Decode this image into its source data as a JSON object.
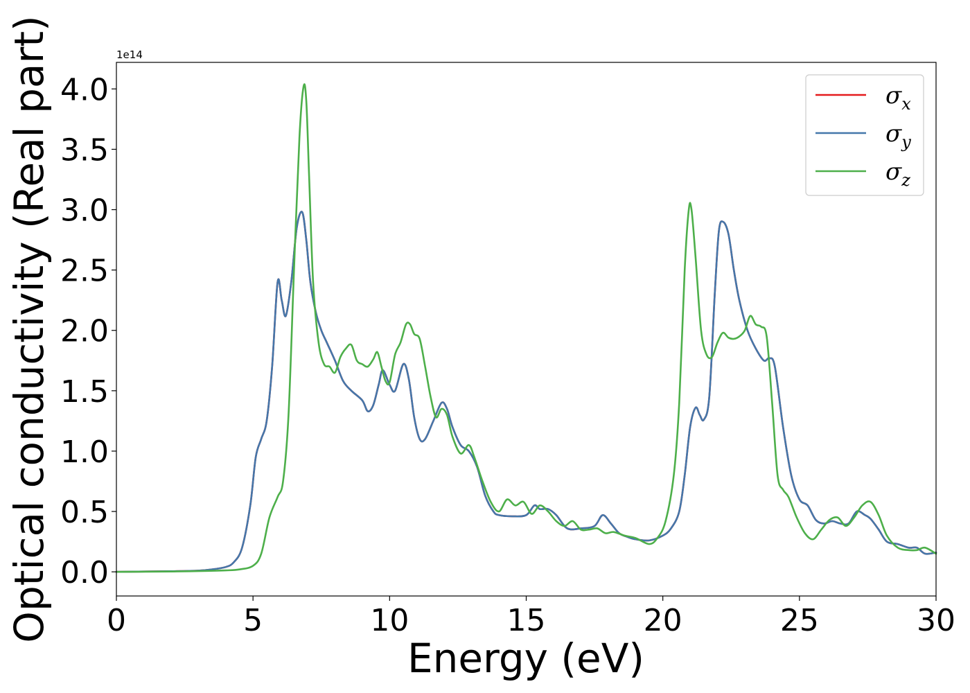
{
  "chart_data": {
    "type": "line",
    "xlabel": "Energy (eV)",
    "ylabel": "Optical conductivity (Real part)",
    "y_offset_label": "1e14",
    "xlim": [
      0,
      30
    ],
    "ylim": [
      -0.2,
      4.22
    ],
    "x_ticks": [
      0,
      5,
      10,
      15,
      20,
      25,
      30
    ],
    "x_tick_labels": [
      "0",
      "5",
      "10",
      "15",
      "20",
      "25",
      "30"
    ],
    "y_ticks": [
      0.0,
      0.5,
      1.0,
      1.5,
      2.0,
      2.5,
      3.0,
      3.5,
      4.0
    ],
    "y_tick_labels": [
      "0.0",
      "0.5",
      "1.0",
      "1.5",
      "2.0",
      "2.5",
      "3.0",
      "3.5",
      "4.0"
    ],
    "grid": false,
    "legend_position": "top-right",
    "series": [
      {
        "name": "σx",
        "legend_main": "σ",
        "legend_sub": "x",
        "color": "#e41a1c",
        "x": [
          0,
          2,
          3,
          3.5,
          4,
          4.3,
          4.6,
          4.9,
          5.1,
          5.3,
          5.5,
          5.7,
          5.9,
          6.05,
          6.2,
          6.4,
          6.6,
          6.8,
          6.95,
          7.1,
          7.3,
          7.5,
          7.7,
          8.0,
          8.3,
          8.6,
          9.0,
          9.2,
          9.4,
          9.6,
          9.75,
          10.0,
          10.2,
          10.5,
          10.7,
          10.9,
          11.1,
          11.3,
          11.6,
          11.9,
          12.1,
          12.3,
          12.6,
          12.9,
          13.2,
          13.5,
          13.8,
          14.0,
          14.5,
          15.0,
          15.3,
          15.5,
          15.8,
          16.1,
          16.5,
          17.0,
          17.5,
          17.8,
          18.1,
          18.4,
          18.7,
          19.0,
          19.5,
          20.0,
          20.3,
          20.6,
          20.8,
          21.0,
          21.2,
          21.35,
          21.5,
          21.7,
          21.9,
          22.05,
          22.2,
          22.4,
          22.6,
          22.8,
          23.1,
          23.4,
          23.7,
          23.9,
          24.1,
          24.4,
          24.7,
          25.0,
          25.3,
          25.6,
          25.9,
          26.2,
          26.5,
          26.8,
          27.1,
          27.4,
          27.6,
          27.9,
          28.2,
          28.6,
          29.0,
          29.3,
          29.6,
          30.0
        ],
        "y": [
          0,
          0.005,
          0.01,
          0.02,
          0.04,
          0.08,
          0.2,
          0.55,
          0.95,
          1.1,
          1.25,
          1.7,
          2.4,
          2.25,
          2.12,
          2.4,
          2.85,
          2.98,
          2.75,
          2.4,
          2.15,
          2.0,
          1.9,
          1.75,
          1.58,
          1.5,
          1.42,
          1.33,
          1.38,
          1.55,
          1.67,
          1.55,
          1.5,
          1.72,
          1.6,
          1.28,
          1.1,
          1.1,
          1.25,
          1.4,
          1.35,
          1.2,
          1.05,
          1.0,
          0.87,
          0.63,
          0.5,
          0.47,
          0.46,
          0.47,
          0.55,
          0.52,
          0.52,
          0.47,
          0.36,
          0.36,
          0.38,
          0.47,
          0.4,
          0.32,
          0.29,
          0.27,
          0.26,
          0.3,
          0.36,
          0.5,
          0.8,
          1.2,
          1.36,
          1.3,
          1.26,
          1.45,
          2.3,
          2.82,
          2.9,
          2.8,
          2.5,
          2.25,
          2.0,
          1.85,
          1.75,
          1.77,
          1.7,
          1.2,
          0.8,
          0.6,
          0.55,
          0.43,
          0.4,
          0.42,
          0.4,
          0.4,
          0.5,
          0.47,
          0.44,
          0.35,
          0.25,
          0.23,
          0.2,
          0.2,
          0.15,
          0.16
        ]
      },
      {
        "name": "σy",
        "legend_main": "σ",
        "legend_sub": "y",
        "color": "#4477aa",
        "x": [
          0,
          2,
          3,
          3.5,
          4,
          4.3,
          4.6,
          4.9,
          5.1,
          5.3,
          5.5,
          5.7,
          5.9,
          6.05,
          6.2,
          6.4,
          6.6,
          6.8,
          6.95,
          7.1,
          7.3,
          7.5,
          7.7,
          8.0,
          8.3,
          8.6,
          9.0,
          9.2,
          9.4,
          9.6,
          9.75,
          10.0,
          10.2,
          10.5,
          10.7,
          10.9,
          11.1,
          11.3,
          11.6,
          11.9,
          12.1,
          12.3,
          12.6,
          12.9,
          13.2,
          13.5,
          13.8,
          14.0,
          14.5,
          15.0,
          15.3,
          15.5,
          15.8,
          16.1,
          16.5,
          17.0,
          17.5,
          17.8,
          18.1,
          18.4,
          18.7,
          19.0,
          19.5,
          20.0,
          20.3,
          20.6,
          20.8,
          21.0,
          21.2,
          21.35,
          21.5,
          21.7,
          21.9,
          22.05,
          22.2,
          22.4,
          22.6,
          22.8,
          23.1,
          23.4,
          23.7,
          23.9,
          24.1,
          24.4,
          24.7,
          25.0,
          25.3,
          25.6,
          25.9,
          26.2,
          26.5,
          26.8,
          27.1,
          27.4,
          27.6,
          27.9,
          28.2,
          28.6,
          29.0,
          29.3,
          29.6,
          30.0
        ],
        "y": [
          0,
          0.005,
          0.01,
          0.02,
          0.04,
          0.08,
          0.2,
          0.55,
          0.95,
          1.1,
          1.25,
          1.7,
          2.4,
          2.25,
          2.12,
          2.4,
          2.85,
          2.98,
          2.75,
          2.4,
          2.15,
          2.0,
          1.9,
          1.75,
          1.58,
          1.5,
          1.42,
          1.33,
          1.38,
          1.55,
          1.67,
          1.55,
          1.5,
          1.72,
          1.6,
          1.28,
          1.1,
          1.1,
          1.25,
          1.4,
          1.35,
          1.2,
          1.05,
          1.0,
          0.87,
          0.63,
          0.5,
          0.47,
          0.46,
          0.47,
          0.55,
          0.52,
          0.52,
          0.47,
          0.36,
          0.36,
          0.38,
          0.47,
          0.4,
          0.32,
          0.29,
          0.27,
          0.26,
          0.3,
          0.36,
          0.5,
          0.8,
          1.2,
          1.36,
          1.3,
          1.26,
          1.45,
          2.3,
          2.82,
          2.9,
          2.8,
          2.5,
          2.25,
          2.0,
          1.85,
          1.75,
          1.77,
          1.7,
          1.2,
          0.8,
          0.6,
          0.55,
          0.43,
          0.4,
          0.42,
          0.4,
          0.4,
          0.5,
          0.47,
          0.44,
          0.35,
          0.25,
          0.23,
          0.2,
          0.2,
          0.15,
          0.16
        ]
      },
      {
        "name": "σz",
        "legend_main": "σ",
        "legend_sub": "z",
        "color": "#4daf4a",
        "x": [
          0,
          2,
          3,
          4,
          4.5,
          5.0,
          5.3,
          5.6,
          5.9,
          6.1,
          6.3,
          6.5,
          6.7,
          6.85,
          6.95,
          7.05,
          7.2,
          7.4,
          7.6,
          7.8,
          8.0,
          8.2,
          8.4,
          8.6,
          8.8,
          9.0,
          9.2,
          9.4,
          9.55,
          9.7,
          9.85,
          10.0,
          10.2,
          10.4,
          10.6,
          10.75,
          10.9,
          11.1,
          11.3,
          11.5,
          11.7,
          11.9,
          12.1,
          12.3,
          12.6,
          12.9,
          13.1,
          13.4,
          13.7,
          14.0,
          14.3,
          14.6,
          14.9,
          15.2,
          15.5,
          15.8,
          16.1,
          16.4,
          16.7,
          17.0,
          17.3,
          17.6,
          17.9,
          18.2,
          18.6,
          19.0,
          19.5,
          19.8,
          20.1,
          20.4,
          20.6,
          20.8,
          20.95,
          21.05,
          21.2,
          21.4,
          21.6,
          21.8,
          22.0,
          22.2,
          22.4,
          22.6,
          22.8,
          23.0,
          23.2,
          23.4,
          23.6,
          23.8,
          24.0,
          24.2,
          24.4,
          24.6,
          24.9,
          25.2,
          25.5,
          25.8,
          26.1,
          26.4,
          26.7,
          27.0,
          27.3,
          27.6,
          27.9,
          28.2,
          28.6,
          29.0,
          29.3,
          29.6,
          30.0
        ],
        "y": [
          0,
          0.003,
          0.006,
          0.012,
          0.02,
          0.05,
          0.15,
          0.45,
          0.62,
          0.75,
          1.3,
          2.5,
          3.6,
          4.02,
          3.9,
          3.3,
          2.4,
          1.9,
          1.72,
          1.7,
          1.65,
          1.78,
          1.85,
          1.88,
          1.75,
          1.72,
          1.7,
          1.76,
          1.82,
          1.7,
          1.58,
          1.57,
          1.8,
          1.9,
          2.05,
          2.05,
          1.97,
          1.93,
          1.7,
          1.45,
          1.28,
          1.35,
          1.3,
          1.12,
          0.98,
          1.05,
          0.95,
          0.75,
          0.58,
          0.5,
          0.6,
          0.55,
          0.58,
          0.48,
          0.55,
          0.5,
          0.42,
          0.38,
          0.42,
          0.35,
          0.35,
          0.36,
          0.32,
          0.33,
          0.3,
          0.28,
          0.23,
          0.28,
          0.42,
          0.8,
          1.4,
          2.5,
          3.0,
          3.0,
          2.6,
          2.0,
          1.8,
          1.78,
          1.9,
          1.98,
          1.94,
          1.93,
          1.95,
          2.0,
          2.12,
          2.05,
          2.03,
          1.95,
          1.4,
          0.8,
          0.68,
          0.62,
          0.45,
          0.32,
          0.27,
          0.35,
          0.43,
          0.45,
          0.38,
          0.45,
          0.55,
          0.58,
          0.47,
          0.3,
          0.2,
          0.18,
          0.18,
          0.2,
          0.15
        ]
      }
    ]
  }
}
